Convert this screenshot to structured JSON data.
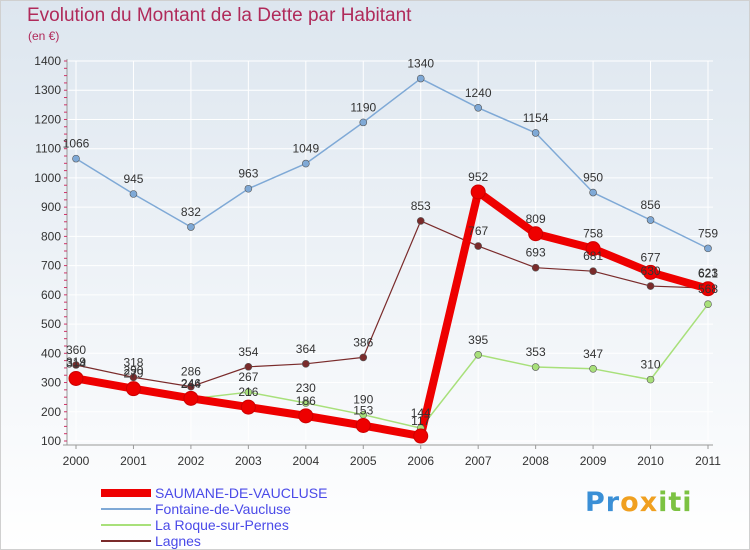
{
  "title": "Evolution du Montant de la Dette par Habitant",
  "subtitle": "(en €)",
  "logo": {
    "text": "Proxiti",
    "letters": [
      {
        "ch": "P",
        "color": "#3a8fd6"
      },
      {
        "ch": "r",
        "color": "#3a8fd6"
      },
      {
        "ch": "o",
        "color": "#f0a020"
      },
      {
        "ch": "x",
        "color": "#f0a020"
      },
      {
        "ch": "i",
        "color": "#7cc242"
      },
      {
        "ch": "t",
        "color": "#7cc242"
      },
      {
        "ch": "i",
        "color": "#7cc242"
      }
    ]
  },
  "chart_data": {
    "type": "line",
    "title": "Evolution du Montant de la Dette par Habitant",
    "subtitle": "(en €)",
    "x": [
      "2000",
      "2001",
      "2002",
      "2003",
      "2004",
      "2005",
      "2006",
      "2007",
      "2008",
      "2009",
      "2010",
      "2011"
    ],
    "ylim": [
      100,
      1400
    ],
    "yticks": [
      100,
      200,
      300,
      400,
      500,
      600,
      700,
      800,
      900,
      1000,
      1100,
      1200,
      1300,
      1400
    ],
    "grid": true,
    "legend_position": "bottom-left",
    "series": [
      {
        "name": "SAUMANE-DE-VAUCLUSE",
        "color": "#ee0000",
        "width": 8,
        "marker": 7,
        "values": [
          314,
          279,
          246,
          216,
          186,
          153,
          117,
          952,
          809,
          758,
          677,
          621
        ]
      },
      {
        "name": "Fontaine-de-Vaucluse",
        "color": "#7fa9d6",
        "width": 1.5,
        "marker": 3.5,
        "values": [
          1066,
          945,
          832,
          963,
          1049,
          1190,
          1340,
          1240,
          1154,
          950,
          856,
          759
        ]
      },
      {
        "name": "La Roque-sur-Pernes",
        "color": "#a8e07a",
        "width": 1.5,
        "marker": 3.5,
        "values": [
          319,
          290,
          244,
          267,
          230,
          190,
          144,
          395,
          353,
          347,
          310,
          568
        ]
      },
      {
        "name": "Lagnes",
        "color": "#7a2b2b",
        "width": 1.2,
        "marker": 3.5,
        "values": [
          360,
          318,
          286,
          354,
          364,
          386,
          853,
          767,
          693,
          681,
          630,
          623
        ]
      }
    ]
  }
}
